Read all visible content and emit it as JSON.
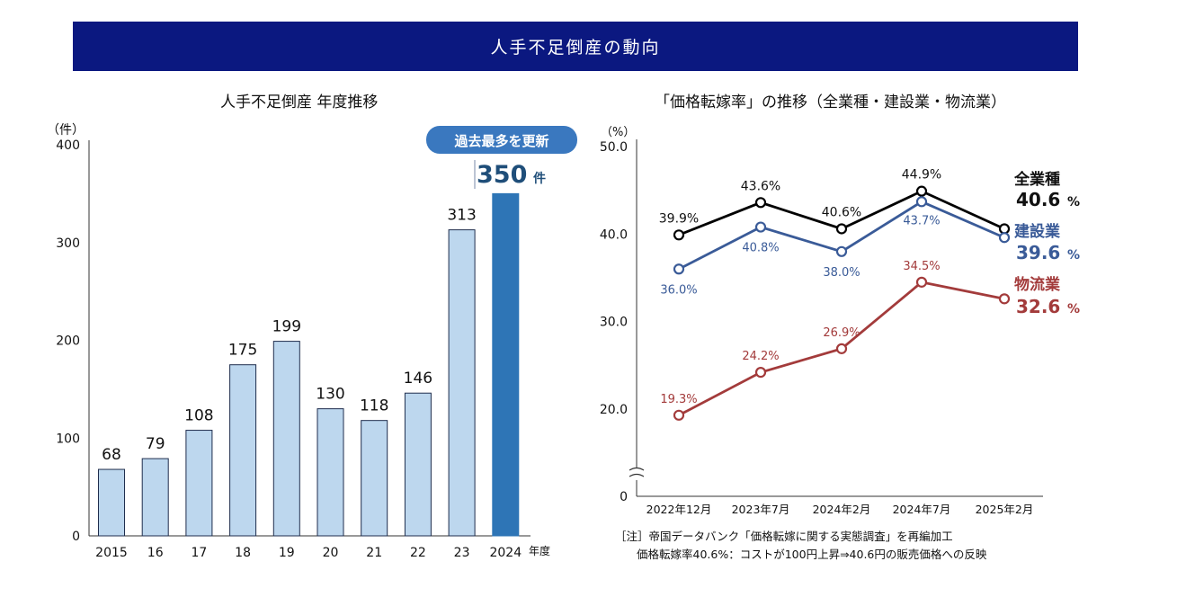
{
  "banner": {
    "title": "人手不足倒産の動向"
  },
  "left": {
    "subtitle": "人手不足倒産 年度推移",
    "unit": "（件）",
    "badge": "過去最多を更新",
    "highlight_value": "350",
    "highlight_unit": "件",
    "x_suffix": "年度"
  },
  "right": {
    "subtitle": "「価格転嫁率」の推移（全業種・建設業・物流業）",
    "unit": "（%）",
    "notes": [
      "［注］帝国データバンク「価格転嫁に関する実態調査」を再編加工",
      "価格転嫁率40.6%：コストが100円上昇⇒40.6円の販売価格への反映"
    ]
  },
  "colors": {
    "banner": "#0b1880",
    "bar_light": "#bdd7ee",
    "bar_highlight": "#2e75b6",
    "highlight_text": "#1f4e79",
    "badge_bg": "#3a78bf",
    "all_industries": "#000000",
    "construction": "#3a5b98",
    "logistics": "#a33b3b"
  },
  "chart_data": [
    {
      "type": "bar",
      "title": "人手不足倒産 年度推移",
      "categories": [
        "2015",
        "16",
        "17",
        "18",
        "19",
        "20",
        "21",
        "22",
        "23",
        "2024"
      ],
      "values": [
        68,
        79,
        108,
        175,
        199,
        130,
        118,
        146,
        313,
        350
      ],
      "value_labels": [
        "68",
        "79",
        "108",
        "175",
        "199",
        "130",
        "118",
        "146",
        "313",
        ""
      ],
      "ylim": [
        0,
        400
      ],
      "yticks": [
        "0",
        "100",
        "200",
        "300",
        "400"
      ],
      "ylabel": "（件）",
      "xlabel": "年度",
      "highlight_index": 9,
      "grid": false
    },
    {
      "type": "line",
      "title": "「価格転嫁率」の推移（全業種・建設業・物流業）",
      "categories": [
        "2022年12月",
        "2023年7月",
        "2024年2月",
        "2024年7月",
        "2025年2月"
      ],
      "ylim": [
        0,
        50
      ],
      "yticks": [
        "0",
        "20.0",
        "30.0",
        "40.0",
        "50.0"
      ],
      "ylabel": "（%）",
      "axis_break": true,
      "grid": false,
      "series": [
        {
          "name": "全業種",
          "values": [
            39.9,
            43.6,
            40.6,
            44.9,
            40.6
          ],
          "labels": [
            "39.9%",
            "43.6%",
            "40.6%",
            "44.9%",
            ""
          ],
          "end_label": "40.6",
          "end_unit": "%"
        },
        {
          "name": "建設業",
          "values": [
            36.0,
            40.8,
            38.0,
            43.7,
            39.6
          ],
          "labels": [
            "36.0%",
            "40.8%",
            "38.0%",
            "43.7%",
            ""
          ],
          "end_label": "39.6",
          "end_unit": "%"
        },
        {
          "name": "物流業",
          "values": [
            19.3,
            24.2,
            26.9,
            34.5,
            32.6
          ],
          "labels": [
            "19.3%",
            "24.2%",
            "26.9%",
            "34.5%",
            ""
          ],
          "end_label": "32.6",
          "end_unit": "%"
        }
      ]
    }
  ]
}
